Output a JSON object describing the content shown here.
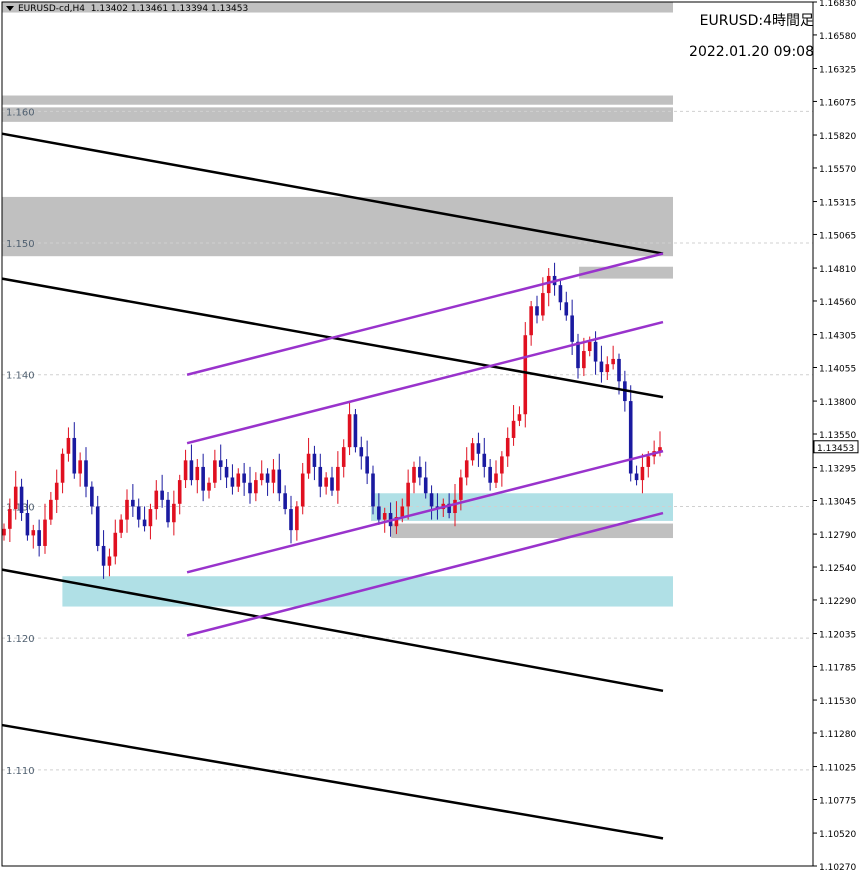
{
  "header": {
    "symbol": "EURUSD-cd,H4",
    "ohlc": "1.13402 1.13461 1.13394 1.13453"
  },
  "overlay": {
    "title": "EURUSD:4時間足",
    "datetime": "2022.01.20 09:08"
  },
  "chart_data": {
    "type": "candlestick",
    "symbol": "EURUSD",
    "timeframe": "H4",
    "ylim": [
      1.1027,
      1.1683
    ],
    "y_ticks": [
      "1.16830",
      "1.16580",
      "1.16325",
      "1.16075",
      "1.15820",
      "1.15570",
      "1.15315",
      "1.15065",
      "1.14810",
      "1.14560",
      "1.14305",
      "1.14055",
      "1.13800",
      "1.13550",
      "1.13295",
      "1.13045",
      "1.12790",
      "1.12540",
      "1.12290",
      "1.12035",
      "1.11785",
      "1.11530",
      "1.11280",
      "1.11025",
      "1.10775",
      "1.10520",
      "1.10270"
    ],
    "current_price": "1.13453",
    "levels": [
      {
        "label": "1.160",
        "value": 1.16
      },
      {
        "label": "1.150",
        "value": 1.15
      },
      {
        "label": "1.140",
        "value": 1.14
      },
      {
        "label": "1.130",
        "value": 1.13
      },
      {
        "label": "1.120",
        "value": 1.12
      },
      {
        "label": "1.110",
        "value": 1.11
      }
    ],
    "zones": [
      {
        "from": 1.1675,
        "to": 1.1683,
        "color": "#c0c0c0"
      },
      {
        "from": 1.1605,
        "to": 1.1612,
        "color": "#c0c0c0"
      },
      {
        "from": 1.1592,
        "to": 1.1603,
        "color": "#c0c0c0"
      },
      {
        "from": 1.149,
        "to": 1.1535,
        "color": "#c0c0c0"
      },
      {
        "from": 1.1473,
        "to": 1.1482,
        "color": "#c0c0c0"
      },
      {
        "from": 1.1289,
        "to": 1.131,
        "color": "#b0e0e6"
      },
      {
        "from": 1.1276,
        "to": 1.1287,
        "color": "#c0c0c0"
      },
      {
        "from": 1.1224,
        "to": 1.1247,
        "color": "#b0e0e6"
      }
    ],
    "zone_extents": [
      [
        0,
        1
      ],
      [
        0,
        1
      ],
      [
        0,
        1
      ],
      [
        0,
        1
      ],
      [
        0.86,
        1
      ],
      [
        0.55,
        1
      ],
      [
        0.58,
        1
      ],
      [
        0.09,
        1
      ]
    ],
    "trendlines": [
      {
        "color": "#000000",
        "from": [
          0,
          1.1583
        ],
        "to": [
          1,
          1.1492
        ]
      },
      {
        "color": "#000000",
        "from": [
          0,
          1.1473
        ],
        "to": [
          1,
          1.1383
        ]
      },
      {
        "color": "#000000",
        "from": [
          0,
          1.1252
        ],
        "to": [
          1,
          1.116
        ]
      },
      {
        "color": "#000000",
        "from": [
          0,
          1.1134
        ],
        "to": [
          1,
          1.1048
        ]
      },
      {
        "color": "#9933cc",
        "from": [
          0.28,
          1.14
        ],
        "to": [
          1,
          1.1492
        ]
      },
      {
        "color": "#9933cc",
        "from": [
          0.28,
          1.1348
        ],
        "to": [
          1,
          1.144
        ]
      },
      {
        "color": "#9933cc",
        "from": [
          0.28,
          1.125
        ],
        "to": [
          1,
          1.1342
        ]
      },
      {
        "color": "#9933cc",
        "from": [
          0.28,
          1.1202
        ],
        "to": [
          1,
          1.1295
        ]
      }
    ],
    "closes": [
      1.1283,
      1.1298,
      1.1315,
      1.1295,
      1.1278,
      1.1282,
      1.127,
      1.129,
      1.1305,
      1.1318,
      1.134,
      1.1352,
      1.1325,
      1.1335,
      1.1315,
      1.13,
      1.127,
      1.1255,
      1.1262,
      1.128,
      1.129,
      1.1305,
      1.13,
      1.129,
      1.1285,
      1.1298,
      1.1312,
      1.1305,
      1.1288,
      1.1302,
      1.132,
      1.1335,
      1.132,
      1.133,
      1.1312,
      1.1318,
      1.1335,
      1.133,
      1.1322,
      1.1315,
      1.1325,
      1.1318,
      1.131,
      1.132,
      1.1325,
      1.1318,
      1.1328,
      1.131,
      1.1298,
      1.1282,
      1.13,
      1.1325,
      1.134,
      1.133,
      1.1315,
      1.1322,
      1.1312,
      1.133,
      1.1345,
      1.137,
      1.1345,
      1.1338,
      1.1325,
      1.13,
      1.129,
      1.1295,
      1.1285,
      1.1292,
      1.13,
      1.1318,
      1.133,
      1.1322,
      1.131,
      1.13,
      1.1298,
      1.1302,
      1.1295,
      1.1305,
      1.1322,
      1.1335,
      1.1348,
      1.134,
      1.133,
      1.1318,
      1.1325,
      1.1338,
      1.1352,
      1.1365,
      1.137,
      1.143,
      1.1452,
      1.1445,
      1.1462,
      1.1475,
      1.1468,
      1.1455,
      1.1445,
      1.1425,
      1.1405,
      1.1418,
      1.1425,
      1.141,
      1.1402,
      1.1408,
      1.1412,
      1.1395,
      1.138,
      1.1325,
      1.132,
      1.133,
      1.1338,
      1.1342,
      1.1345
    ]
  }
}
